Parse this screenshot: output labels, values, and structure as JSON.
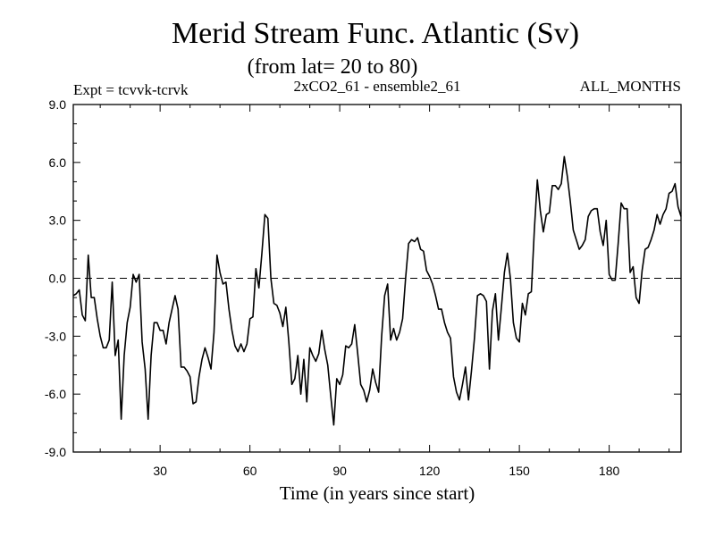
{
  "chart_data": {
    "type": "line",
    "title": "Merid Stream Func. Atlantic (Sv)",
    "subtitle": "(from lat= 20 to 80)",
    "expt_label": "Expt = tcvvk-tcrvk",
    "run_label": "2xCO2_61 - ensemble2_61",
    "months_label": "ALL_MONTHS",
    "xlabel": "Time (in years since start)",
    "ylabel": "",
    "xlim": [
      1,
      204
    ],
    "ylim": [
      -9,
      9
    ],
    "x_ticks": [
      30,
      60,
      90,
      120,
      150,
      180
    ],
    "x_tick_labels": [
      "30",
      "60",
      "90",
      "120",
      "150",
      "180"
    ],
    "y_ticks": [
      -9,
      -6,
      -3,
      0,
      3,
      6,
      9
    ],
    "y_tick_labels": [
      "-9.0",
      "-6.0",
      "-3.0",
      "0.0",
      "3.0",
      "6.0",
      "9.0"
    ],
    "reference_line": {
      "y": 0,
      "style": "dashed"
    },
    "grid": false,
    "series_color": "#000000",
    "series": [
      {
        "x": [
          1,
          2,
          3,
          4,
          5,
          6,
          7,
          8,
          9,
          10,
          11,
          12,
          13,
          14,
          15,
          16,
          17,
          18,
          19,
          20,
          21,
          22,
          23,
          24,
          25,
          26,
          27,
          28,
          29,
          30,
          31,
          32,
          33,
          34,
          35,
          36,
          37,
          38,
          39,
          40,
          41,
          42,
          43,
          44,
          45,
          46,
          47,
          48,
          49,
          50,
          51,
          52,
          53,
          54,
          55,
          56,
          57,
          58,
          59,
          60,
          61,
          62,
          63,
          64,
          65,
          66,
          67,
          68,
          69,
          70,
          71,
          72,
          73,
          74,
          75,
          76,
          77,
          78,
          79,
          80,
          81,
          82,
          83,
          84,
          85,
          86,
          87,
          88,
          89,
          90,
          91,
          92,
          93,
          94,
          95,
          96,
          97,
          98,
          99,
          100,
          101,
          102,
          103,
          104,
          105,
          106,
          107,
          108,
          109,
          110,
          111,
          112,
          113,
          114,
          115,
          116,
          117,
          118,
          119,
          120,
          121,
          122,
          123,
          124,
          125,
          126,
          127,
          128,
          129,
          130,
          131,
          132,
          133,
          134,
          135,
          136,
          137,
          138,
          139,
          140,
          141,
          142,
          143,
          144,
          145,
          146,
          147,
          148,
          149,
          150,
          151,
          152,
          153,
          154,
          155,
          156,
          157,
          158,
          159,
          160,
          161,
          162,
          163,
          164,
          165,
          166,
          167,
          168,
          169,
          170,
          171,
          172,
          173,
          174,
          175,
          176,
          177,
          178,
          179,
          180,
          181,
          182,
          183,
          184,
          185,
          186,
          187,
          188,
          189,
          190,
          191,
          192,
          193,
          194,
          195,
          196,
          197,
          198,
          199,
          200,
          201,
          202,
          203,
          204
        ],
        "values": [
          -0.9,
          -0.8,
          -0.6,
          -1.9,
          -2.2,
          1.2,
          -1.0,
          -1.0,
          -2.1,
          -3.0,
          -3.6,
          -3.6,
          -3.2,
          -0.2,
          -4.0,
          -3.2,
          -7.3,
          -4.0,
          -2.3,
          -1.5,
          0.2,
          -0.2,
          0.2,
          -3.3,
          -4.7,
          -7.3,
          -4.0,
          -2.3,
          -2.3,
          -2.7,
          -2.7,
          -3.4,
          -2.3,
          -1.6,
          -0.9,
          -1.6,
          -4.6,
          -4.6,
          -4.8,
          -5.1,
          -6.5,
          -6.4,
          -5.1,
          -4.2,
          -3.6,
          -4.1,
          -4.7,
          -2.8,
          1.2,
          0.3,
          -0.3,
          -0.2,
          -1.6,
          -2.7,
          -3.5,
          -3.8,
          -3.4,
          -3.8,
          -3.4,
          -2.1,
          -2.0,
          0.5,
          -0.5,
          1.3,
          3.3,
          3.1,
          0.0,
          -1.3,
          -1.4,
          -1.8,
          -2.5,
          -1.5,
          -3.3,
          -5.5,
          -5.2,
          -4.0,
          -6.0,
          -4.2,
          -6.4,
          -3.6,
          -4.0,
          -4.3,
          -3.9,
          -2.7,
          -3.7,
          -4.5,
          -6.1,
          -7.6,
          -5.2,
          -5.5,
          -5.0,
          -3.5,
          -3.6,
          -3.4,
          -2.4,
          -3.9,
          -5.5,
          -5.8,
          -6.4,
          -5.8,
          -4.7,
          -5.4,
          -5.9,
          -3.0,
          -0.9,
          -0.3,
          -3.2,
          -2.6,
          -3.2,
          -2.8,
          -2.1,
          0.0,
          1.8,
          2.0,
          1.9,
          2.1,
          1.5,
          1.4,
          0.4,
          0.1,
          -0.3,
          -0.9,
          -1.6,
          -1.6,
          -2.3,
          -2.8,
          -3.1,
          -5.1,
          -5.9,
          -6.3,
          -5.5,
          -4.6,
          -6.3,
          -4.8,
          -3.1,
          -0.9,
          -0.8,
          -0.9,
          -1.2,
          -4.7,
          -1.7,
          -0.8,
          -3.2,
          -1.5,
          0.3,
          1.3,
          0.0,
          -2.3,
          -3.1,
          -3.3,
          -1.3,
          -1.9,
          -0.8,
          -0.7,
          2.5,
          5.1,
          3.5,
          2.4,
          3.3,
          3.4,
          4.8,
          4.8,
          4.6,
          4.9,
          6.3,
          5.3,
          4.0,
          2.5,
          2.0,
          1.5,
          1.7,
          2.0,
          3.2,
          3.5,
          3.6,
          3.6,
          2.4,
          1.7,
          3.0,
          0.2,
          -0.1,
          -0.1,
          1.8,
          3.9,
          3.6,
          3.6,
          0.3,
          0.6,
          -1.0,
          -1.3,
          0.4,
          1.5,
          1.6,
          2.0,
          2.5,
          3.3,
          2.8,
          3.3,
          3.6,
          4.4,
          4.5,
          4.9,
          3.7,
          3.2
        ]
      }
    ]
  }
}
